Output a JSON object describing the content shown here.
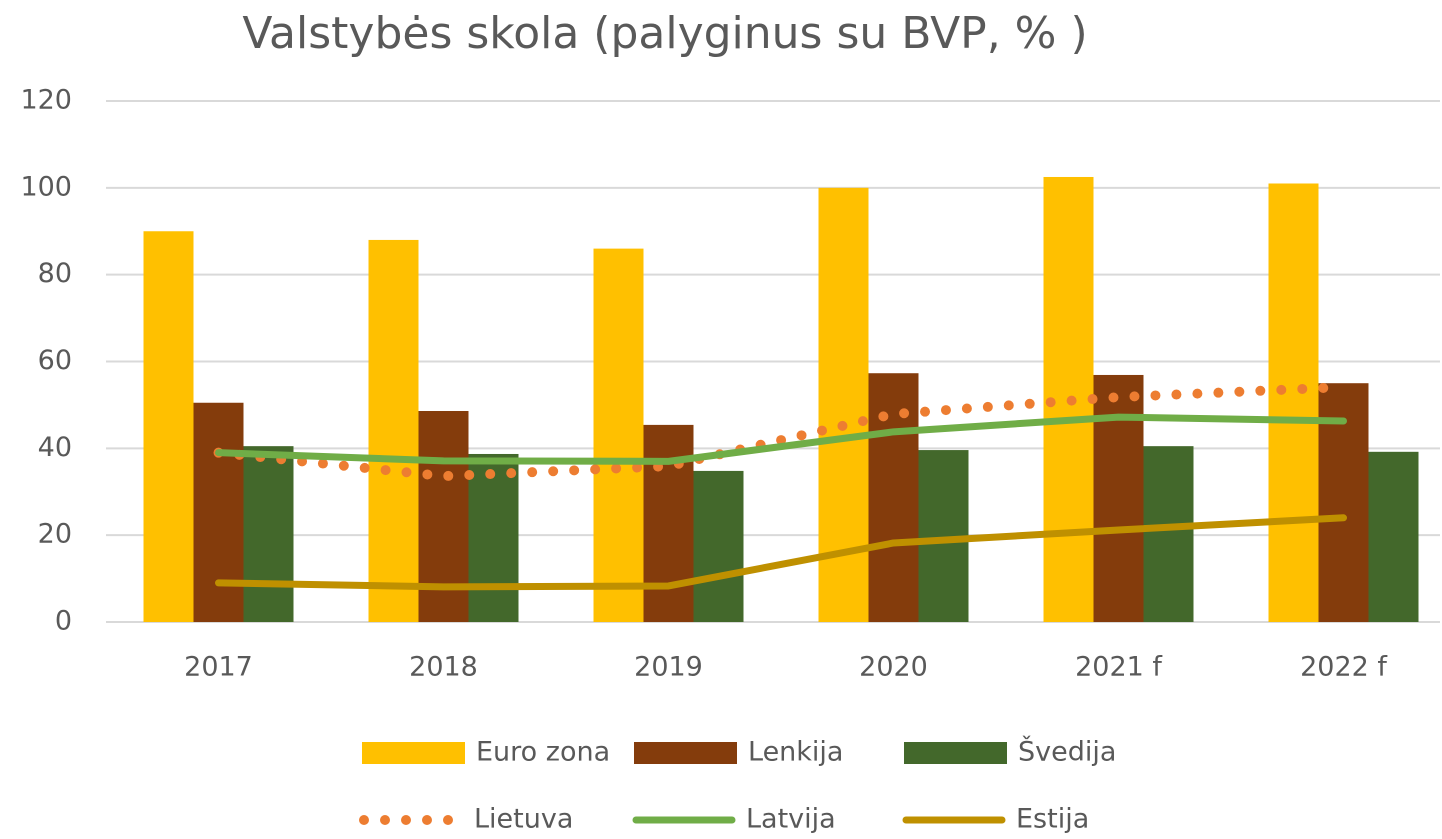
{
  "chart_data": {
    "type": "bar",
    "title": "Valstybės skola (palyginus su BVP, % )",
    "categories": [
      "2017",
      "2018",
      "2019",
      "2020",
      "2021 f",
      "2022 f"
    ],
    "series": [
      {
        "name": "Euro zona",
        "type": "bar",
        "color": "#ffc000",
        "values": [
          90,
          88,
          86,
          100,
          102.5,
          101
        ]
      },
      {
        "name": "Lenkija",
        "type": "bar",
        "color": "#843c0c",
        "values": [
          50.5,
          48.6,
          45.4,
          57.3,
          56.9,
          55
        ]
      },
      {
        "name": "Švedija",
        "type": "bar",
        "color": "#43682b",
        "values": [
          40.5,
          38.7,
          34.8,
          39.6,
          40.5,
          39.2
        ]
      },
      {
        "name": "Lietuva",
        "type": "line",
        "line_style": "dotted",
        "color": "#ed7d31",
        "values": [
          39,
          33.6,
          35.9,
          47.9,
          51.8,
          54.1
        ]
      },
      {
        "name": "Latvija",
        "type": "line",
        "line_style": "solid",
        "color": "#70ad47",
        "values": [
          39,
          37.1,
          37,
          43.8,
          47.2,
          46.3
        ]
      },
      {
        "name": "Estija",
        "type": "line",
        "line_style": "solid",
        "color": "#bf9000",
        "values": [
          9,
          8.1,
          8.3,
          18.2,
          21.2,
          24
        ]
      }
    ],
    "ylim": [
      0,
      120
    ],
    "yticks": [
      0,
      20,
      40,
      60,
      80,
      100,
      120
    ],
    "grid": true,
    "legend": "bottom"
  }
}
